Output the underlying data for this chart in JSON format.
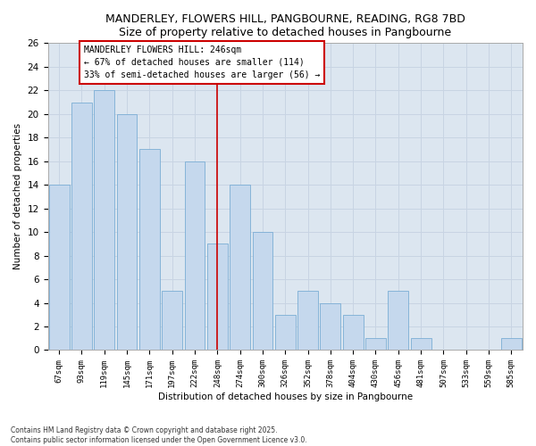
{
  "title": "MANDERLEY, FLOWERS HILL, PANGBOURNE, READING, RG8 7BD",
  "subtitle": "Size of property relative to detached houses in Pangbourne",
  "xlabel": "Distribution of detached houses by size in Pangbourne",
  "ylabel": "Number of detached properties",
  "categories": [
    "67sqm",
    "93sqm",
    "119sqm",
    "145sqm",
    "171sqm",
    "197sqm",
    "222sqm",
    "248sqm",
    "274sqm",
    "300sqm",
    "326sqm",
    "352sqm",
    "378sqm",
    "404sqm",
    "430sqm",
    "456sqm",
    "481sqm",
    "507sqm",
    "533sqm",
    "559sqm",
    "585sqm"
  ],
  "values": [
    14,
    21,
    22,
    20,
    17,
    5,
    16,
    9,
    14,
    10,
    3,
    5,
    4,
    3,
    1,
    5,
    1,
    0,
    0,
    0,
    1
  ],
  "bar_color": "#c5d8ed",
  "bar_edge_color": "#7aadd4",
  "vline_index": 7,
  "vline_color": "#cc0000",
  "annotation_text": "MANDERLEY FLOWERS HILL: 246sqm\n← 67% of detached houses are smaller (114)\n33% of semi-detached houses are larger (56) →",
  "annotation_box_color": "#cc0000",
  "ylim": [
    0,
    26
  ],
  "yticks": [
    0,
    2,
    4,
    6,
    8,
    10,
    12,
    14,
    16,
    18,
    20,
    22,
    24,
    26
  ],
  "grid_color": "#c8d4e3",
  "background_color": "#dce6f0",
  "fig_background": "#ffffff",
  "footer_line1": "Contains HM Land Registry data © Crown copyright and database right 2025.",
  "footer_line2": "Contains public sector information licensed under the Open Government Licence v3.0."
}
